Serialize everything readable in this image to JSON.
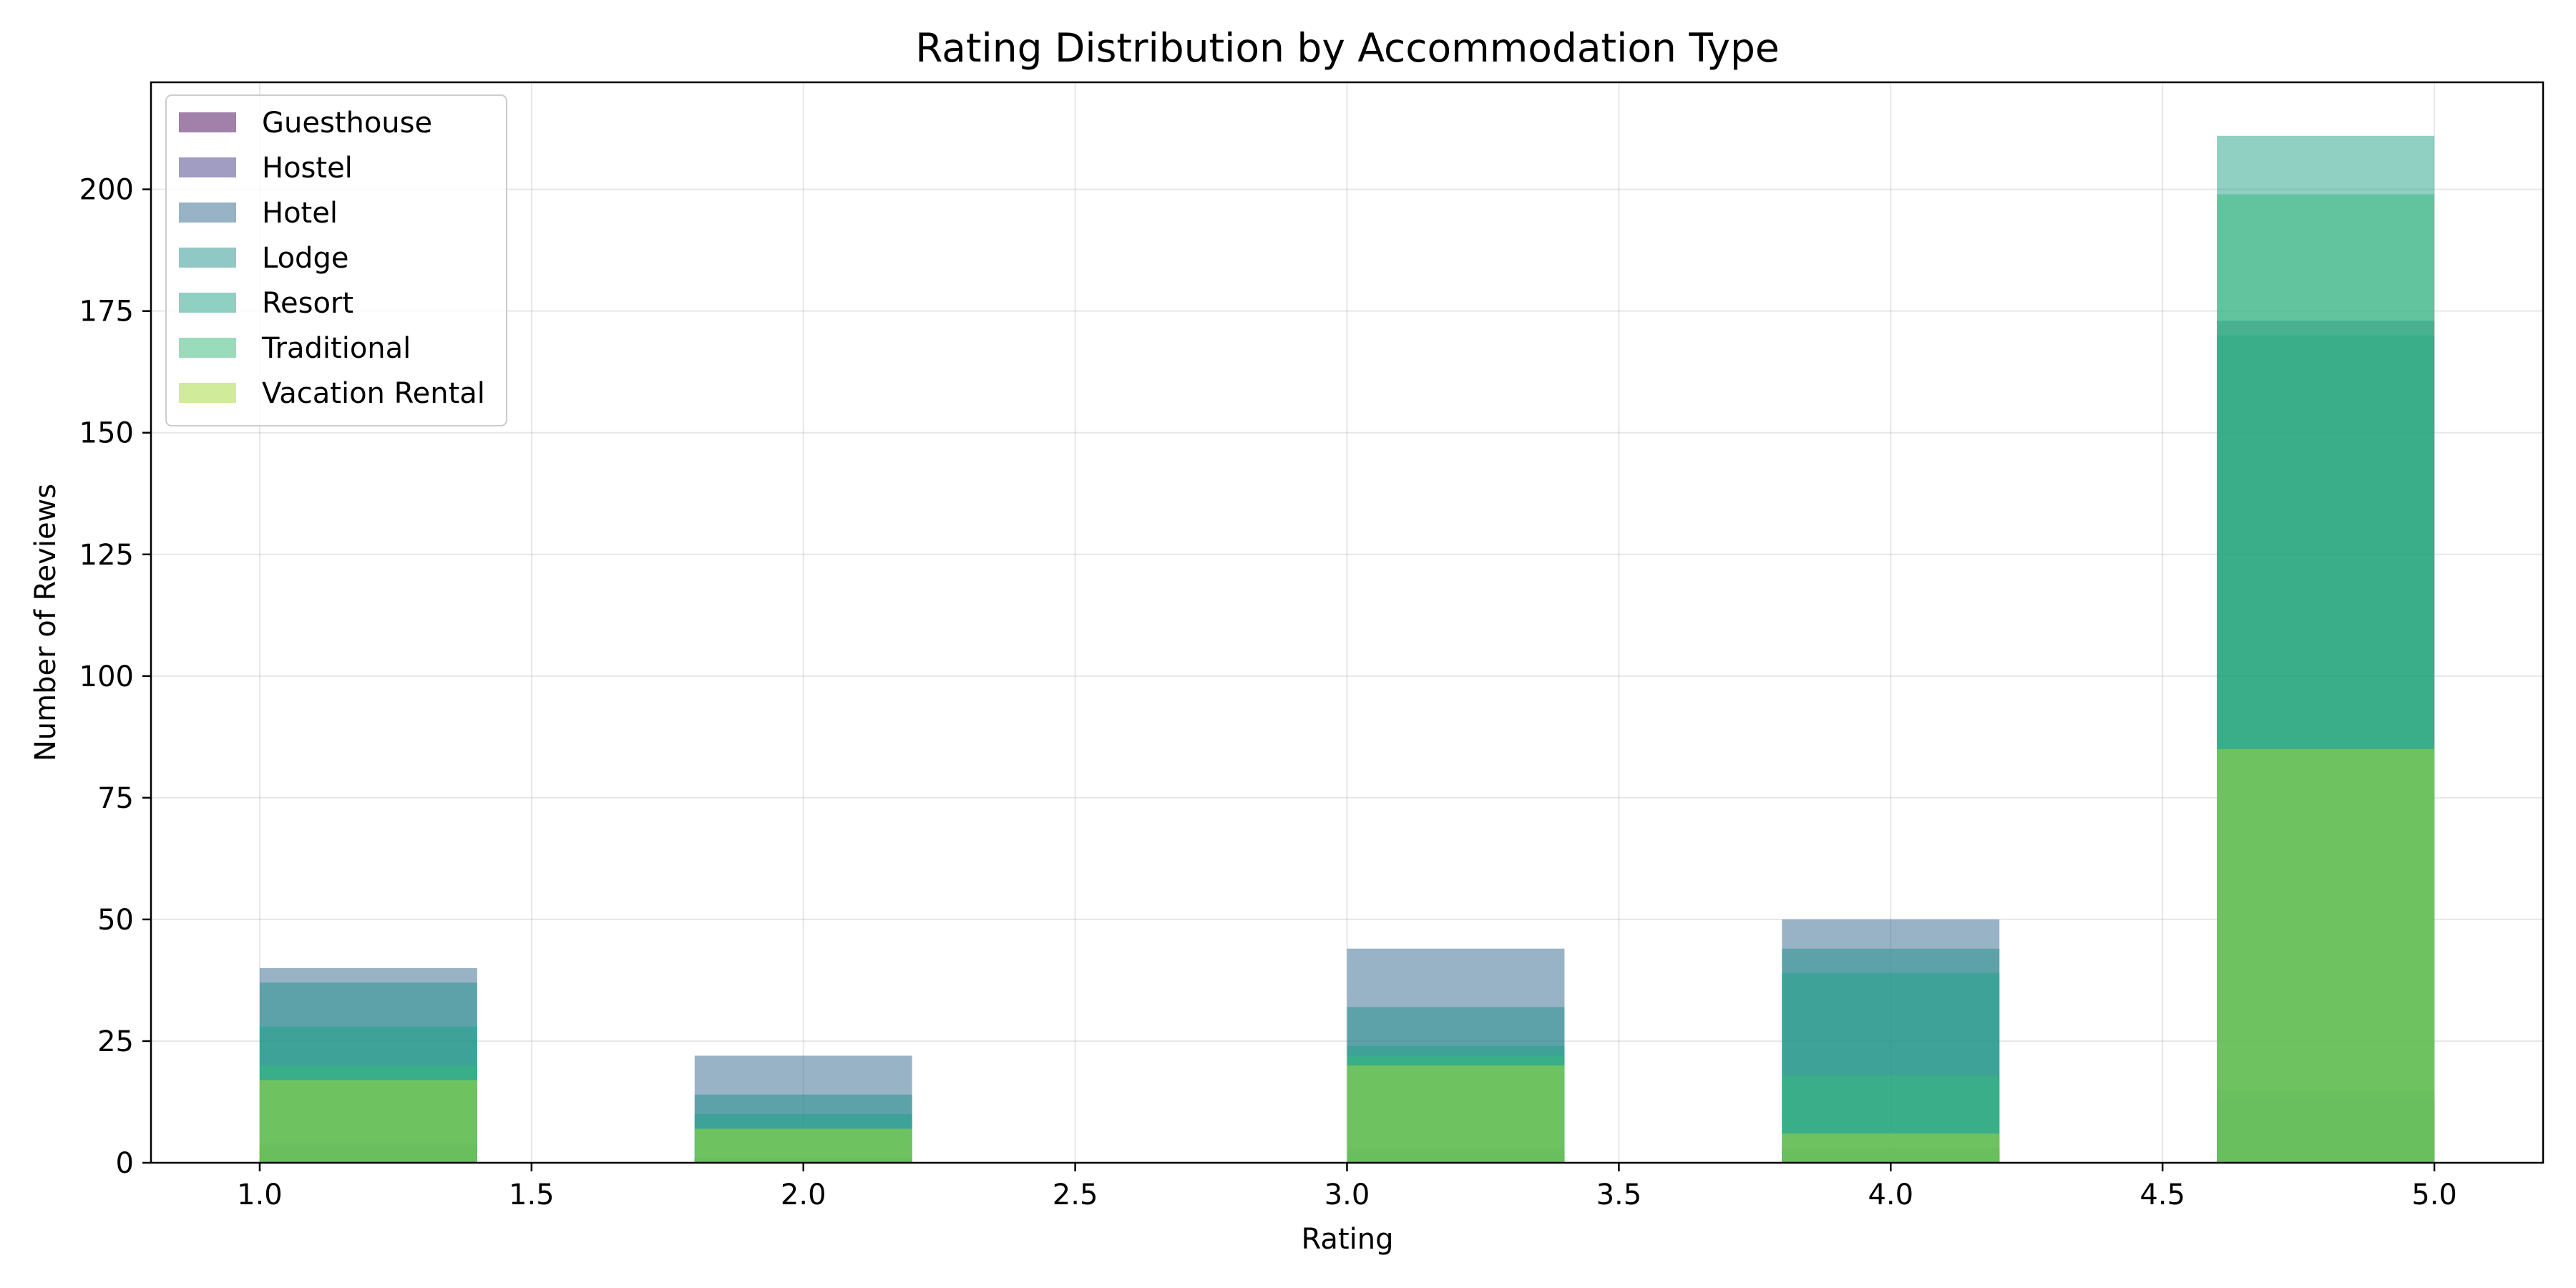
{
  "chart_data": {
    "type": "bar",
    "title": "Rating Distribution by Accommodation Type",
    "xlabel": "Rating",
    "ylabel": "Number of Reviews",
    "xlim": [
      0.8,
      5.2
    ],
    "ylim": [
      0,
      222
    ],
    "xticks": [
      "1.0",
      "1.5",
      "2.0",
      "2.5",
      "3.0",
      "3.5",
      "4.0",
      "4.5",
      "5.0"
    ],
    "yticks": [
      "0",
      "25",
      "50",
      "75",
      "100",
      "125",
      "150",
      "175",
      "200"
    ],
    "grid": true,
    "legend_position": "top-left",
    "bar_alpha": 0.5,
    "bins": [
      {
        "from": 1.0,
        "to": 1.4
      },
      {
        "from": 1.8,
        "to": 2.2
      },
      {
        "from": 3.0,
        "to": 3.4
      },
      {
        "from": 3.8,
        "to": 4.2
      },
      {
        "from": 4.6,
        "to": 5.0
      }
    ],
    "series": [
      {
        "name": "Guesthouse",
        "color": "#440154",
        "values": [
          4,
          1,
          3,
          3,
          13
        ]
      },
      {
        "name": "Hostel",
        "color": "#443983",
        "values": [
          3,
          1,
          2,
          2,
          15
        ]
      },
      {
        "name": "Hotel",
        "color": "#31688e",
        "values": [
          40,
          22,
          44,
          50,
          173
        ]
      },
      {
        "name": "Lodge",
        "color": "#21918c",
        "values": [
          37,
          14,
          32,
          44,
          170
        ]
      },
      {
        "name": "Resort",
        "color": "#1fa187",
        "values": [
          28,
          10,
          24,
          39,
          211
        ]
      },
      {
        "name": "Traditional",
        "color": "#35b779",
        "values": [
          20,
          7,
          22,
          18,
          199
        ]
      },
      {
        "name": "Vacation Rental",
        "color": "#a2da37",
        "values": [
          17,
          7,
          20,
          6,
          85
        ]
      }
    ]
  }
}
